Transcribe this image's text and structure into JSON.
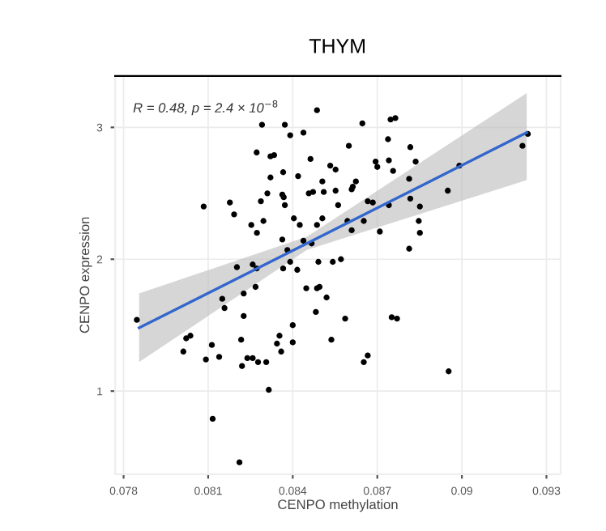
{
  "chart_data": {
    "type": "scatter",
    "title": "THYM",
    "xlabel": "CENPO methylation",
    "ylabel": "CENPO expression",
    "annotations": [
      "R = 0.48, p = 2.4 × 10$^{−8}$"
    ],
    "xlim": [
      0.0777,
      0.0935
    ],
    "ylim": [
      0.37,
      3.39
    ],
    "xticks": [
      0.078,
      0.081,
      0.084,
      0.087,
      0.09,
      0.093
    ],
    "yticks": [
      1,
      2,
      3
    ],
    "grid": true,
    "series": [
      {
        "color": "#000000",
        "marker": "circle",
        "x": [
          0.07847,
          0.08192,
          0.08287,
          0.08253,
          0.08273,
          0.08296,
          0.08372,
          0.08404,
          0.08425,
          0.08486,
          0.08505,
          0.08561,
          0.08363,
          0.08381,
          0.08391,
          0.08366,
          0.08416,
          0.08438,
          0.08467,
          0.08491,
          0.08542,
          0.08571,
          0.08594,
          0.08609,
          0.08652,
          0.08709,
          0.08847,
          0.08851,
          0.08813,
          0.08202,
          0.08258,
          0.08272,
          0.08268,
          0.08226,
          0.0815,
          0.08158,
          0.08226,
          0.08448,
          0.08486,
          0.08495,
          0.0852,
          0.08482,
          0.084,
          0.08586,
          0.08751,
          0.0877,
          0.08022,
          0.08037,
          0.08012,
          0.08113,
          0.08092,
          0.08139,
          0.08217,
          0.0822,
          0.08239,
          0.08258,
          0.08277,
          0.08306,
          0.08344,
          0.08359,
          0.08353,
          0.084,
          0.08537,
          0.08652,
          0.08666,
          0.08953,
          0.08315,
          0.08116,
          0.08211,
          0.08486,
          0.08291,
          0.08372,
          0.08391,
          0.08438,
          0.08647,
          0.08747,
          0.08764,
          0.08738,
          0.08599,
          0.08817,
          0.08272,
          0.08321,
          0.08334,
          0.08463,
          0.08533,
          0.08552,
          0.08694,
          0.087,
          0.08741,
          0.08756,
          0.08836,
          0.08991,
          0.09234,
          0.09215,
          0.08366,
          0.08419,
          0.08321,
          0.08505,
          0.08613,
          0.08624,
          0.08813,
          0.0895,
          0.0831,
          0.08363,
          0.08368,
          0.08457,
          0.08472,
          0.0851,
          0.08552,
          0.08609,
          0.08084,
          0.08177,
          0.08666,
          0.08817,
          0.08851,
          0.08741,
          0.08684
        ],
        "values": [
          1.54,
          2.34,
          2.44,
          2.26,
          2.2,
          2.29,
          2.41,
          2.31,
          2.26,
          2.26,
          2.31,
          2.41,
          2.15,
          2.07,
          1.98,
          1.93,
          1.92,
          2.14,
          2.12,
          1.98,
          1.98,
          2.0,
          2.29,
          2.22,
          2.29,
          2.21,
          2.29,
          2.2,
          2.08,
          1.94,
          1.96,
          1.93,
          1.79,
          1.74,
          1.7,
          1.63,
          1.57,
          1.78,
          1.78,
          1.79,
          1.71,
          1.6,
          1.5,
          1.55,
          1.56,
          1.55,
          1.4,
          1.42,
          1.3,
          1.35,
          1.24,
          1.26,
          1.39,
          1.19,
          1.25,
          1.25,
          1.22,
          1.22,
          1.36,
          1.3,
          1.42,
          1.37,
          1.39,
          1.22,
          1.27,
          1.15,
          1.01,
          0.79,
          0.46,
          3.13,
          3.02,
          3.02,
          2.94,
          2.96,
          3.03,
          3.06,
          3.07,
          2.91,
          2.86,
          2.85,
          2.81,
          2.78,
          2.79,
          2.76,
          2.71,
          2.68,
          2.74,
          2.7,
          2.75,
          2.67,
          2.74,
          2.71,
          2.95,
          2.86,
          2.66,
          2.63,
          2.62,
          2.59,
          2.55,
          2.59,
          2.61,
          2.52,
          2.5,
          2.49,
          2.47,
          2.5,
          2.51,
          2.51,
          2.52,
          2.53,
          2.4,
          2.43,
          2.44,
          2.46,
          2.4,
          2.41,
          2.43
        ]
      },
      {
        "type": "line",
        "color": "#3366cc",
        "x": [
          0.07855,
          0.0845,
          0.0923
        ],
        "values": [
          1.48,
          2.12,
          2.96
        ],
        "lower": [
          1.22,
          2.07,
          2.6
        ],
        "upper": [
          1.74,
          2.17,
          3.26
        ]
      }
    ]
  }
}
